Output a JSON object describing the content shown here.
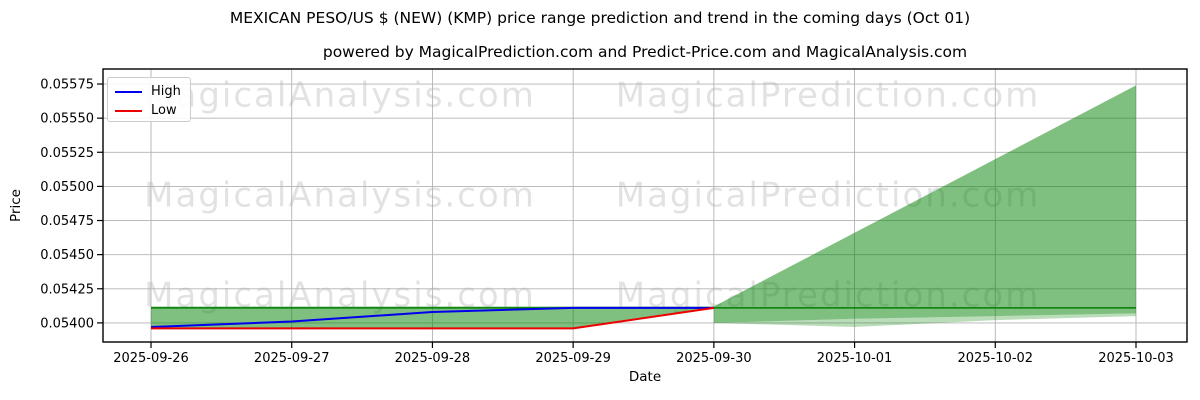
{
  "header": {
    "title": "MEXICAN PESO/US $ (NEW) (KMP) price range prediction and trend in the coming days (Oct 01)",
    "subtitle": "powered by MagicalPrediction.com and Predict-Price.com and MagicalAnalysis.com"
  },
  "watermarks": {
    "left": "MagicalAnalysis.com",
    "right": "MagicalPrediction.com"
  },
  "legend": {
    "items": [
      {
        "label": "High",
        "color": "#0000ee"
      },
      {
        "label": "Low",
        "color": "#ee0000"
      }
    ]
  },
  "colors": {
    "high_line": "#0000ee",
    "low_line": "#ee0000",
    "trend_line": "#008000",
    "band_fill": "#008000",
    "grid": "#b3b3b3",
    "spine": "#000000",
    "watermark": "#000000"
  },
  "chart_data": {
    "type": "line",
    "title": "MEXICAN PESO/US $ (NEW) (KMP) price range prediction and trend in the coming days (Oct 01)",
    "xlabel": "Date",
    "ylabel": "Price",
    "x": [
      "2025-09-26",
      "2025-09-27",
      "2025-09-28",
      "2025-09-29",
      "2025-09-30",
      "2025-10-01",
      "2025-10-02",
      "2025-10-03"
    ],
    "ylim": [
      0.05386,
      0.05586
    ],
    "yticks": [
      "0.05400",
      "0.05425",
      "0.05450",
      "0.05475",
      "0.05500",
      "0.05525",
      "0.05550",
      "0.05575"
    ],
    "grid": true,
    "legend_position": "upper-left",
    "series": [
      {
        "name": "High",
        "color": "#0000ee",
        "values": [
          0.05397,
          0.05401,
          0.05408,
          0.05411,
          0.05411,
          null,
          null,
          null
        ]
      },
      {
        "name": "Low",
        "color": "#ee0000",
        "values": [
          0.05396,
          0.05396,
          0.05396,
          0.05396,
          0.05411,
          null,
          null,
          null
        ]
      },
      {
        "name": "Trend",
        "color": "#008000",
        "values": [
          0.05411,
          0.05411,
          0.05411,
          0.05411,
          0.05411,
          0.05411,
          0.05411,
          0.05411
        ]
      }
    ],
    "band": {
      "label": "prediction-range",
      "color": "#008000",
      "opacity": 0.5,
      "upper": [
        0.05412,
        0.05412,
        0.05412,
        0.05412,
        0.05412,
        0.05466,
        0.0552,
        0.05574
      ],
      "lower": [
        0.05396,
        0.05396,
        0.05396,
        0.05396,
        0.054,
        0.05403,
        0.05405,
        0.05407
      ],
      "lower_outer": [
        null,
        null,
        null,
        null,
        0.054,
        0.05397,
        0.05402,
        0.05405
      ]
    }
  }
}
